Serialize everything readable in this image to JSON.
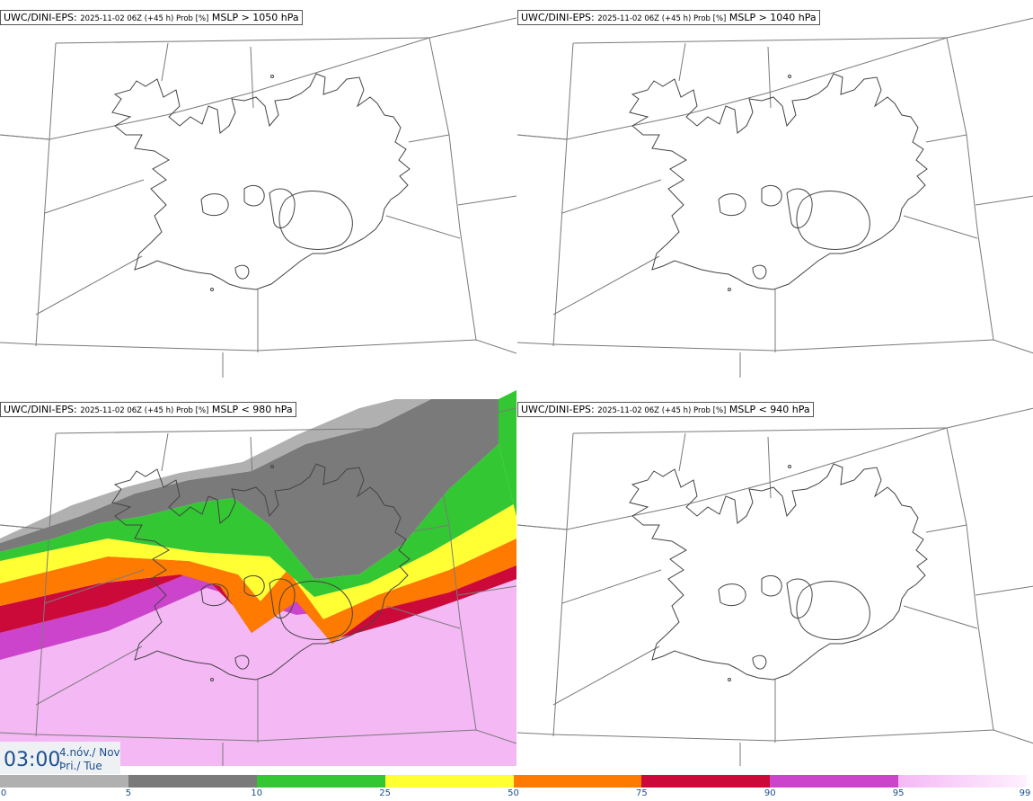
{
  "panels": [
    {
      "model": "UWC/DINI-EPS",
      "run": "2025-11-02 06Z (+45 h) Prob [%]",
      "field": "MSLP > 1050 hPa"
    },
    {
      "model": "UWC/DINI-EPS",
      "run": "2025-11-02 06Z (+45 h) Prob [%]",
      "field": "MSLP > 1040 hPa"
    },
    {
      "model": "UWC/DINI-EPS",
      "run": "2025-11-02 06Z (+45 h) Prob [%]",
      "field": "MSLP < 980 hPa"
    },
    {
      "model": "UWC/DINI-EPS",
      "run": "2025-11-02 06Z (+45 h) Prob [%]",
      "field": "MSLP < 940 hPa"
    }
  ],
  "valid_time": {
    "time": "03:00",
    "date_line1": "4.nóv./ Nov",
    "date_line2": "Þri./ Tue"
  },
  "legend": {
    "labels": [
      "0",
      "5",
      "10",
      "25",
      "50",
      "75",
      "90",
      "95",
      "99"
    ],
    "colors": [
      "#ffffff",
      "#b0b0b0",
      "#7a7a7a",
      "#33c733",
      "#ffff33",
      "#ff7a00",
      "#cc0a3a",
      "#cc44cc",
      "#f4b8f4"
    ]
  }
}
